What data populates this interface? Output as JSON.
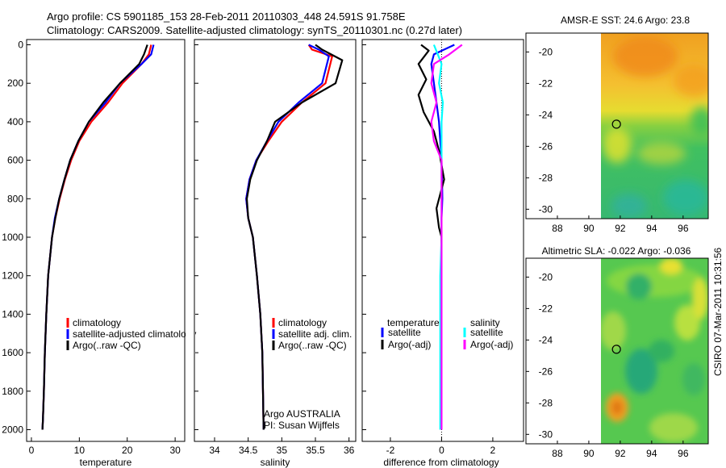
{
  "header": {
    "title_line1": "Argo profile: CS 5901185_153 28-Feb-2011 20110303_448 24.591S 91.758E",
    "title_line2": "Climatology: CARS2009. Satellite-adjusted climatology: synTS_20110301.nc (0.27d later)"
  },
  "side_label": "CSIRO 07-Mar-2011 10:31:56",
  "colors": {
    "climatology": "#ff0000",
    "satellite": "#0000ff",
    "argo": "#000000",
    "salinity_satellite": "#00ffff",
    "salinity_argo": "#ff00ff"
  },
  "chart_data": [
    {
      "type": "line",
      "id": "temperature",
      "xlabel": "temperature",
      "xlim": [
        -1,
        32
      ],
      "xticks": [
        0,
        10,
        20,
        30
      ],
      "ylim": [
        0,
        2050
      ],
      "y_inverted": true,
      "yticks": [
        0,
        200,
        400,
        600,
        800,
        1000,
        1200,
        1400,
        1600,
        1800,
        2000
      ],
      "legend": [
        "climatology",
        "satellite-adjusted climatology",
        "Argo(..raw -QC)"
      ],
      "series": [
        {
          "name": "climatology",
          "color": "#ff0000",
          "x": [
            25.0,
            24.5,
            23.0,
            19.0,
            16.0,
            12.5,
            10.0,
            8.3,
            7.0,
            5.9,
            5.0,
            4.3,
            3.9,
            3.5,
            3.1,
            2.8,
            2.6,
            2.4,
            2.3
          ],
          "y": [
            0,
            50,
            100,
            200,
            300,
            400,
            500,
            600,
            700,
            800,
            900,
            1000,
            1100,
            1200,
            1400,
            1600,
            1800,
            1950,
            2000
          ]
        },
        {
          "name": "satellite-adjusted climatology",
          "color": "#0000ff",
          "x": [
            25.5,
            25.0,
            23.0,
            18.5,
            15.5,
            12.0,
            9.8,
            8.1,
            6.9,
            5.8,
            4.9,
            4.3,
            3.9,
            3.5,
            3.1,
            2.8,
            2.6,
            2.4,
            2.3
          ],
          "y": [
            0,
            50,
            100,
            200,
            300,
            400,
            500,
            600,
            700,
            800,
            900,
            1000,
            1100,
            1200,
            1400,
            1600,
            1800,
            1950,
            2000
          ]
        },
        {
          "name": "Argo(..raw -QC)",
          "color": "#000000",
          "x": [
            24.2,
            23.5,
            22.5,
            18.5,
            15.0,
            12.0,
            9.8,
            8.1,
            6.9,
            5.8,
            5.0,
            4.3,
            3.9,
            3.5,
            3.1,
            2.8,
            2.6,
            2.4,
            2.3
          ],
          "y": [
            0,
            50,
            100,
            200,
            300,
            400,
            500,
            600,
            700,
            800,
            900,
            1000,
            1100,
            1200,
            1400,
            1600,
            1800,
            1950,
            2000
          ]
        }
      ]
    },
    {
      "type": "line",
      "id": "salinity",
      "xlabel": "salinity",
      "xlim": [
        33.7,
        36.1
      ],
      "xticks": [
        34,
        34.5,
        35,
        35.5,
        36
      ],
      "ylim": [
        0,
        2050
      ],
      "y_inverted": true,
      "legend": [
        "climatology",
        "satellite adj. clim.",
        "Argo(..raw -QC)"
      ],
      "annotation": [
        "Argo AUSTRALIA",
        "PI: Susan Wijffels"
      ],
      "series": [
        {
          "name": "climatology",
          "color": "#ff0000",
          "x": [
            35.4,
            35.45,
            35.75,
            35.65,
            35.3,
            35.0,
            34.8,
            34.62,
            34.52,
            34.47,
            34.5,
            34.57,
            34.63,
            34.68,
            34.71,
            34.72,
            34.73
          ],
          "y": [
            0,
            25,
            60,
            200,
            300,
            400,
            500,
            600,
            700,
            800,
            900,
            1000,
            1200,
            1400,
            1600,
            1800,
            2000
          ]
        },
        {
          "name": "satellite adj. clim.",
          "color": "#0000ff",
          "x": [
            35.4,
            35.55,
            35.7,
            35.6,
            35.25,
            34.95,
            34.78,
            34.62,
            34.52,
            34.47,
            34.5,
            34.57,
            34.63,
            34.68,
            34.71,
            34.72,
            34.73
          ],
          "y": [
            0,
            25,
            60,
            200,
            300,
            400,
            500,
            600,
            700,
            800,
            900,
            1000,
            1200,
            1400,
            1600,
            1800,
            2000
          ]
        },
        {
          "name": "Argo(..raw -QC)",
          "color": "#000000",
          "x": [
            35.5,
            35.6,
            35.9,
            35.8,
            35.3,
            34.9,
            34.78,
            34.63,
            34.53,
            34.48,
            34.5,
            34.57,
            34.63,
            34.68,
            34.71,
            34.72,
            34.73
          ],
          "y": [
            0,
            25,
            80,
            200,
            300,
            400,
            500,
            600,
            700,
            800,
            900,
            1000,
            1200,
            1400,
            1600,
            1800,
            2000
          ]
        }
      ]
    },
    {
      "type": "line",
      "id": "difference",
      "xlabel": "difference from climatology",
      "xlim": [
        -3.1,
        3.2
      ],
      "xticks": [
        -2,
        0,
        2
      ],
      "ylim": [
        0,
        2050
      ],
      "y_inverted": true,
      "zero_line_dotted": true,
      "legend_groups": [
        {
          "title": "temperature",
          "entries": [
            "satellite",
            "Argo(-adj)"
          ]
        },
        {
          "title": "salinity",
          "entries": [
            "satellite",
            "Argo(-adj)"
          ]
        }
      ],
      "series": [
        {
          "name": "temperature satellite",
          "color": "#0000ff",
          "x": [
            0.5,
            -0.3,
            -0.4,
            -0.3,
            -0.2,
            -0.1,
            -0.05,
            0.0,
            0.02,
            0.03,
            0.0,
            0.0,
            0.0,
            0.0,
            0.0,
            0.0
          ],
          "y": [
            0,
            50,
            100,
            200,
            300,
            400,
            500,
            600,
            700,
            800,
            900,
            1000,
            1200,
            1400,
            1600,
            2000
          ]
        },
        {
          "name": "temperature Argo(-adj)",
          "color": "#000000",
          "x": [
            -0.8,
            -0.5,
            -0.9,
            -0.6,
            -0.9,
            -0.7,
            -0.3,
            -0.1,
            0.1,
            -0.2,
            -0.1,
            0.0,
            0.0,
            0.0,
            0.0,
            0.0
          ],
          "y": [
            0,
            30,
            100,
            180,
            260,
            350,
            450,
            550,
            700,
            850,
            950,
            1000,
            1200,
            1400,
            1600,
            2000
          ]
        },
        {
          "name": "salinity satellite",
          "color": "#00ffff",
          "x": [
            -0.3,
            -0.15,
            0.0,
            -0.1,
            0.05,
            0.0,
            0.0,
            0.0,
            0.0,
            0.0,
            -0.05,
            -0.05,
            -0.05,
            -0.05
          ],
          "y": [
            0,
            50,
            100,
            200,
            300,
            400,
            500,
            600,
            800,
            1000,
            1200,
            1500,
            1800,
            2000
          ]
        },
        {
          "name": "salinity Argo(-adj)",
          "color": "#ff00ff",
          "x": [
            0.8,
            0.3,
            -0.3,
            -0.4,
            -0.2,
            -0.4,
            -0.3,
            0.0,
            0.0,
            0.0,
            0.0,
            0.0,
            0.0
          ],
          "y": [
            0,
            50,
            100,
            200,
            300,
            400,
            500,
            600,
            800,
            1000,
            1200,
            1600,
            2000
          ]
        }
      ]
    },
    {
      "type": "heatmap",
      "id": "sst_map",
      "title": "AMSR-E SST: 24.6 Argo: 23.8",
      "xlim": [
        86,
        97.6
      ],
      "ylim": [
        -30.6,
        -18.8
      ],
      "xticks": [
        88,
        90,
        92,
        94,
        96
      ],
      "yticks": [
        -20,
        -22,
        -24,
        -26,
        -28,
        -30
      ],
      "data_xmin": 90,
      "profile_marker": {
        "lon": 91.758,
        "lat": -24.591
      }
    },
    {
      "type": "heatmap",
      "id": "sla_map",
      "title": "Altimetric SLA: -0.022 Argo: -0.036",
      "xlim": [
        86,
        97.6
      ],
      "ylim": [
        -30.6,
        -18.8
      ],
      "xticks": [
        88,
        90,
        92,
        94,
        96
      ],
      "yticks": [
        -20,
        -22,
        -24,
        -26,
        -28,
        -30
      ],
      "data_xmin": 90,
      "profile_marker": {
        "lon": 91.758,
        "lat": -24.591
      }
    }
  ]
}
